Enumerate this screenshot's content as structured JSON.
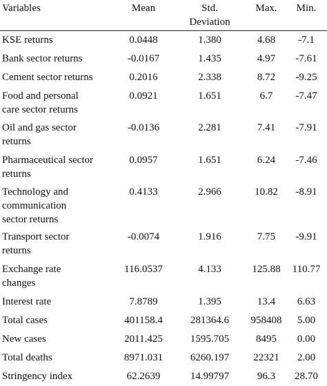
{
  "table": {
    "headers": [
      "Variables",
      "Mean",
      "Std.\nDeviation",
      "Max.",
      "Min."
    ],
    "rows": [
      {
        "variable": [
          "KSE returns"
        ],
        "mean": "0.0448",
        "std": "1.380",
        "max": "4.68",
        "min": "-7.1"
      },
      {
        "variable": [
          "Bank sector returns"
        ],
        "mean": "-0.0167",
        "std": "1.435",
        "max": "4.97",
        "min": "-7.61"
      },
      {
        "variable": [
          "Cement sector returns"
        ],
        "mean": "0.2016",
        "std": "2.338",
        "max": "8.72",
        "min": "-9.25"
      },
      {
        "variable": [
          "Food and personal",
          "care sector returns"
        ],
        "mean": "0.0921",
        "std": "1.651",
        "max": "6.7",
        "min": "-7.47"
      },
      {
        "variable": [
          "Oil and gas sector",
          "returns"
        ],
        "mean": "-0.0136",
        "std": "2.281",
        "max": "7.41",
        "min": "-7.91"
      },
      {
        "variable": [
          "Pharmaceutical sector",
          "returns"
        ],
        "mean": "0.0957",
        "std": "1.651",
        "max": "6.24",
        "min": "-7.46"
      },
      {
        "variable": [
          "Technology and",
          "communication",
          "sector returns"
        ],
        "mean": "0.4133",
        "std": "2.966",
        "max": "10.82",
        "min": "-8.91"
      },
      {
        "variable": [
          "Transport sector",
          "returns"
        ],
        "mean": "-0.0074",
        "std": "1.916",
        "max": "7.75",
        "min": "-9.91"
      },
      {
        "variable": [
          "Exchange rate",
          "changes"
        ],
        "mean": "116.0537",
        "std": "4.133",
        "max": "125.88",
        "min": "110.77"
      },
      {
        "variable": [
          "Interest rate"
        ],
        "mean": "7.8789",
        "std": "1.395",
        "max": "13.4",
        "min": "6.63"
      },
      {
        "variable": [
          "Total cases"
        ],
        "mean": "401158.4",
        "std": "281364.6",
        "max": "958408",
        "min": "5.00"
      },
      {
        "variable": [
          "New cases"
        ],
        "mean": "2011.425",
        "std": "1595.705",
        "max": "8495",
        "min": "0.00"
      },
      {
        "variable": [
          "Total deaths"
        ],
        "mean": "8971.031",
        "std": "6260.197",
        "max": "22321",
        "min": "2.00"
      },
      {
        "variable": [
          "Stringency index"
        ],
        "mean": "62.2639",
        "std": "14.99797",
        "max": "96.3",
        "min": "28.70"
      }
    ]
  }
}
